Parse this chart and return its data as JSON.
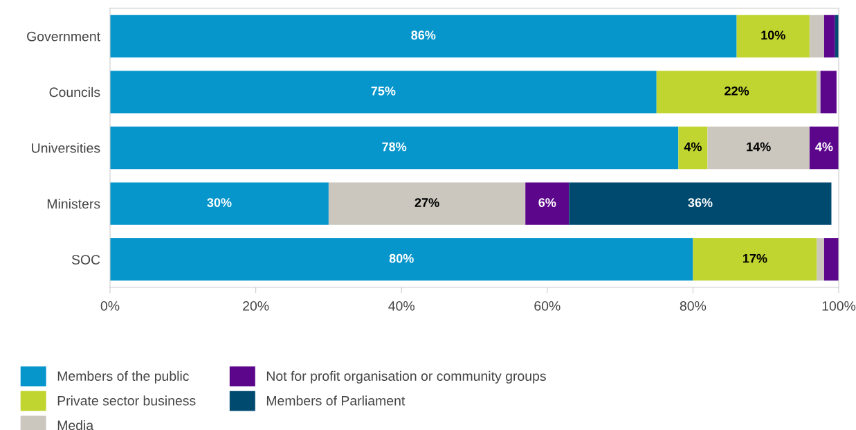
{
  "chart_data": {
    "type": "bar",
    "orientation": "horizontal",
    "stacked": true,
    "categories": [
      "Government",
      "Councils",
      "Universities",
      "Ministers",
      "SOC"
    ],
    "series": [
      {
        "name": "Members of the public",
        "color": "#0796cc",
        "values": [
          86,
          75,
          78,
          30,
          80
        ],
        "value_labels": [
          "86%",
          "75%",
          "78%",
          "30%",
          "80%"
        ]
      },
      {
        "name": "Private sector business",
        "color": "#c0d530",
        "values": [
          10,
          22,
          4,
          null,
          17
        ],
        "value_labels": [
          "10%",
          "22%",
          "4%",
          null,
          "17%"
        ]
      },
      {
        "name": "Media",
        "color": "#cbc7bf",
        "values": [
          2,
          0.5,
          14,
          27,
          1
        ],
        "value_labels": [
          null,
          null,
          "14%",
          "27%",
          null
        ]
      },
      {
        "name": "Not for profit organisation or community groups",
        "color": "#5c068c",
        "values": [
          1.5,
          2.2,
          4,
          6,
          2
        ],
        "value_labels": [
          null,
          null,
          "4%",
          "6%",
          null
        ]
      },
      {
        "name": "Members of Parliament",
        "color": "#004a70",
        "values": [
          0.5,
          null,
          null,
          36,
          null
        ],
        "value_labels": [
          null,
          null,
          null,
          "36%",
          null
        ]
      }
    ],
    "xlim": [
      0,
      100
    ],
    "xticks": [
      {
        "value": 0,
        "label": "0%"
      },
      {
        "value": 20,
        "label": "20%"
      },
      {
        "value": 40,
        "label": "40%"
      },
      {
        "value": 60,
        "label": "60%"
      },
      {
        "value": 80,
        "label": "80%"
      },
      {
        "value": 100,
        "label": "100%"
      }
    ],
    "grid": false,
    "legend": "bottom"
  }
}
